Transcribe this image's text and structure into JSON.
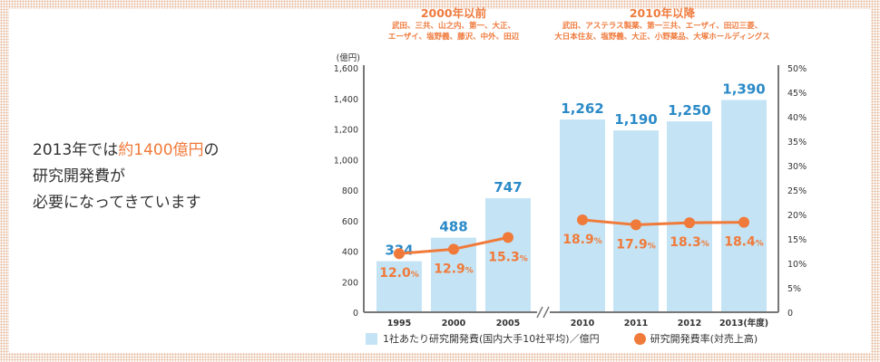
{
  "lead_text": {
    "line1_pre": "2013年では",
    "line1_highlight": "約1400億円",
    "line1_post": "の",
    "line2": "研究開発費が",
    "line3": "必要になってきています"
  },
  "groups": [
    {
      "title": "2000年以前",
      "members1": "武田、三共、山之内、第一、大正、",
      "members2": "エーザイ、塩野義、藤沢、中外、田辺"
    },
    {
      "title": "2010年以降",
      "members1": "武田、アステラス製薬、第一三共、エーザイ、田辺三菱、",
      "members2": "大日本住友、塩野義、大正、小野薬品、大塚ホールディングス"
    }
  ],
  "colors": {
    "bar": "#c4e4f5",
    "bar_label": "#2a8ac8",
    "line": "#f07a3a",
    "border": "#e3b596"
  },
  "chart_data": {
    "type": "bar+line",
    "categories": [
      "1995",
      "2000",
      "2005",
      "2010",
      "2011",
      "2012",
      "2013(年度)"
    ],
    "axis_break_after": "2005",
    "series": [
      {
        "name": "1社あたり研究開発費(国内大手10社平均)／億円",
        "type": "bar",
        "axis": "left",
        "values": [
          334,
          488,
          747,
          1262,
          1190,
          1250,
          1390
        ],
        "labels": [
          "334",
          "488",
          "747",
          "1,262",
          "1,190",
          "1,250",
          "1,390"
        ]
      },
      {
        "name": "研究開発費率(対売上高)",
        "type": "line",
        "axis": "right",
        "values": [
          12.0,
          12.9,
          15.3,
          18.9,
          17.9,
          18.3,
          18.4
        ],
        "labels": [
          "12.0",
          "12.9",
          "15.3",
          "18.9",
          "17.9",
          "18.3",
          "18.4"
        ],
        "unit": "%",
        "line_segments": [
          [
            0,
            2
          ],
          [
            3,
            6
          ]
        ]
      }
    ],
    "left_axis": {
      "unit": "(億円)",
      "ylim": [
        0,
        1600
      ],
      "ticks": [
        "0",
        "200",
        "400",
        "600",
        "800",
        "1,000",
        "1,200",
        "1,400",
        "1,600"
      ]
    },
    "right_axis": {
      "ylim": [
        0,
        50
      ],
      "ticks": [
        "0",
        "5%",
        "10%",
        "15%",
        "20%",
        "25%",
        "30%",
        "35%",
        "40%",
        "45%",
        "50%"
      ]
    },
    "grid": false,
    "legend_placement": "bottom"
  }
}
